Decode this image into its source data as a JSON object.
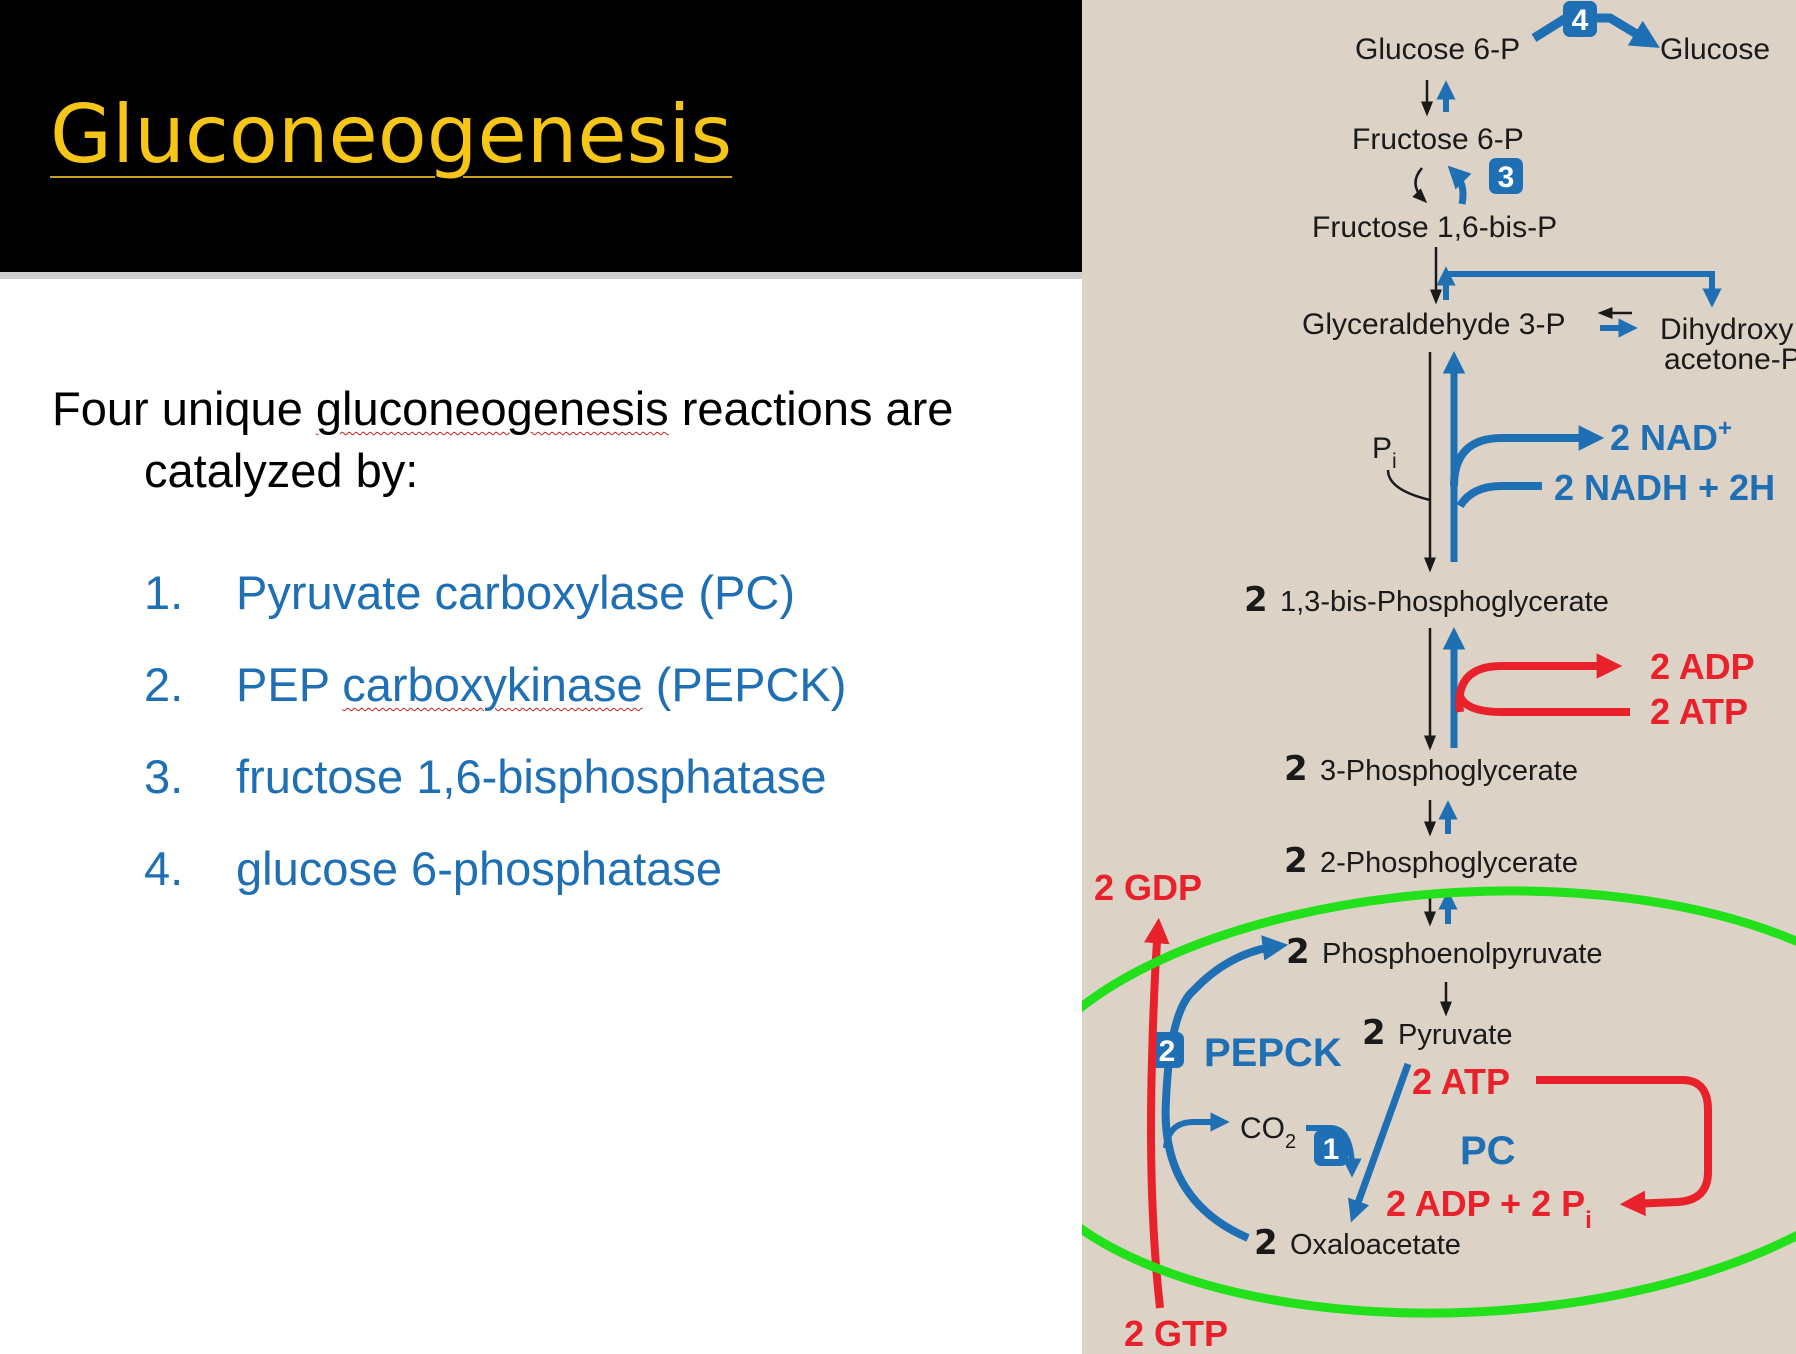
{
  "slide": {
    "title": "Gluconeogenesis",
    "intro_pre": "Four unique ",
    "intro_word": "gluconeogenesis",
    "intro_post": " reactions are catalyzed by:",
    "enzymes": [
      {
        "num": "1.",
        "pre": "Pyruvate carboxylase (PC)",
        "squiggle": "",
        "post": ""
      },
      {
        "num": "2.",
        "pre": "PEP ",
        "squiggle": "carboxykinase",
        "post": " (PEPCK)"
      },
      {
        "num": "3.",
        "pre": "fructose 1,6-bisphosphatase",
        "squiggle": "",
        "post": ""
      },
      {
        "num": "4.",
        "pre": "glucose 6-phosphatase",
        "squiggle": "",
        "post": ""
      }
    ]
  },
  "pathway": {
    "metabolites": {
      "glucose6p": "Glucose 6-P",
      "glucose": "Glucose",
      "fructose6p": "Fructose 6-P",
      "fructose16bp": "Fructose 1,6-bis-P",
      "g3p": "Glyceraldehyde 3-P",
      "dhap_line1": "Dihydroxy",
      "dhap_line2": "acetone-P",
      "bpg13": "1,3-bis-Phosphoglycerate",
      "pg3": "3-Phosphoglycerate",
      "pg2": "2-Phosphoglycerate",
      "pep": "Phosphoenolpyruvate",
      "pyruvate": "Pyruvate",
      "oaa": "Oxaloacetate"
    },
    "stoich": "2",
    "cofactors": {
      "pi": "P",
      "pi_sub": "i",
      "nad": "2 NAD",
      "nad_sup": "+",
      "nadh": "2 NADH + 2H",
      "adp": "2 ADP",
      "atp": "2 ATP",
      "gdp": "2 GDP",
      "gtp": "2 GTP",
      "co2": "CO",
      "co2_sub": "2",
      "pc_atp": "2 ATP",
      "pc_adp": "2 ADP + 2 P",
      "pc_adp_sub": "i"
    },
    "enzymes": {
      "badge1": "1",
      "badge2": "2",
      "badge3": "3",
      "badge4": "4",
      "pc": "PC",
      "pepck": "PEPCK"
    },
    "colors": {
      "blue": "#1f6fb5",
      "red": "#e8212a",
      "green": "#22e01a",
      "background": "#dcd2c6"
    }
  }
}
